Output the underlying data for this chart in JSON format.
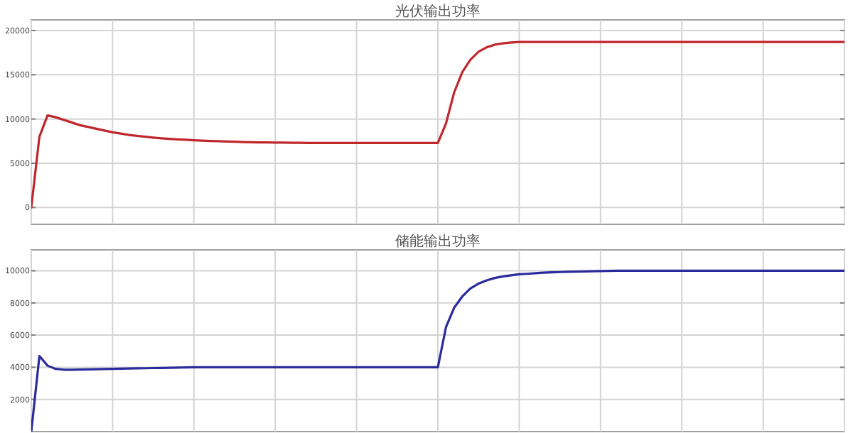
{
  "chart_data": [
    {
      "type": "line",
      "title": "光伏输出功率",
      "categories": [
        null,
        null,
        null,
        null,
        null,
        null,
        null,
        null,
        null,
        null,
        null,
        null,
        null,
        null,
        null,
        null,
        null,
        null,
        null,
        null,
        null,
        null,
        null,
        null,
        null,
        null,
        null,
        null,
        null,
        null,
        null,
        null,
        null,
        null,
        null,
        null,
        null,
        null,
        null,
        null,
        null,
        null,
        null,
        null,
        null,
        null,
        null,
        null,
        null,
        null,
        null,
        null,
        null,
        null,
        null,
        null,
        null,
        null,
        null,
        null,
        null,
        null,
        null,
        null,
        null,
        null,
        null,
        null,
        null,
        null,
        null,
        null,
        null,
        null,
        null,
        null,
        null,
        null,
        null,
        null,
        null,
        null,
        null,
        null,
        null,
        null,
        null,
        null,
        null,
        null,
        null,
        null,
        null,
        null,
        null,
        null,
        null,
        null,
        null,
        null,
        null
      ],
      "series": [
        {
          "color": "#c0272d",
          "values": [
            0,
            8000,
            10400,
            10200,
            9900,
            9600,
            9300,
            9100,
            8900,
            8700,
            8500,
            8350,
            8200,
            8100,
            8000,
            7900,
            7820,
            7750,
            7700,
            7650,
            7600,
            7560,
            7520,
            7490,
            7460,
            7430,
            7400,
            7380,
            7360,
            7350,
            7340,
            7330,
            7320,
            7310,
            7300,
            7300,
            7300,
            7300,
            7300,
            7300,
            7300,
            7300,
            7300,
            7300,
            7300,
            7300,
            7300,
            7300,
            7300,
            7300,
            7300,
            9500,
            13000,
            15300,
            16700,
            17600,
            18100,
            18400,
            18550,
            18650,
            18700,
            18700,
            18700,
            18700,
            18700,
            18700,
            18700,
            18700,
            18700,
            18700,
            18700,
            18700,
            18700,
            18700,
            18700,
            18700,
            18700,
            18700,
            18700,
            18700,
            18700,
            18700,
            18700,
            18700,
            18700,
            18700,
            18700,
            18700,
            18700,
            18700,
            18700,
            18700,
            18700,
            18700,
            18700,
            18700,
            18700,
            18700,
            18700,
            18700,
            18700
          ]
        }
      ],
      "ylim": [
        -1900,
        21200
      ],
      "yticks": [
        0,
        5000,
        10000,
        15000,
        20000
      ],
      "grid": true,
      "tick_labels": "y"
    },
    {
      "type": "line",
      "title": "储能输出功率",
      "categories": [
        null,
        null,
        null,
        null,
        null,
        null,
        null,
        null,
        null,
        null,
        null,
        null,
        null,
        null,
        null,
        null,
        null,
        null,
        null,
        null,
        null,
        null,
        null,
        null,
        null,
        null,
        null,
        null,
        null,
        null,
        null,
        null,
        null,
        null,
        null,
        null,
        null,
        null,
        null,
        null,
        null,
        null,
        null,
        null,
        null,
        null,
        null,
        null,
        null,
        null,
        null,
        null,
        null,
        null,
        null,
        null,
        null,
        null,
        null,
        null,
        null,
        null,
        null,
        null,
        null,
        null,
        null,
        null,
        null,
        null,
        null,
        null,
        null,
        null,
        null,
        null,
        null,
        null,
        null,
        null,
        null,
        null,
        null,
        null,
        null,
        null,
        null,
        null,
        null,
        null,
        null,
        null,
        null,
        null,
        null,
        null,
        null,
        null,
        null,
        null,
        null
      ],
      "series": [
        {
          "color": "#2b2b9b",
          "values": [
            0,
            4700,
            4100,
            3900,
            3850,
            3850,
            3860,
            3870,
            3880,
            3890,
            3900,
            3910,
            3920,
            3930,
            3940,
            3950,
            3960,
            3970,
            3980,
            3990,
            4000,
            4000,
            4000,
            4000,
            4000,
            4000,
            4000,
            4000,
            4000,
            4000,
            4000,
            4000,
            4000,
            4000,
            4000,
            4000,
            4000,
            4000,
            4000,
            4000,
            4000,
            4000,
            4000,
            4000,
            4000,
            4000,
            4000,
            4000,
            4000,
            4000,
            4000,
            6500,
            7700,
            8400,
            8900,
            9200,
            9400,
            9550,
            9650,
            9720,
            9780,
            9810,
            9850,
            9880,
            9900,
            9920,
            9940,
            9950,
            9960,
            9970,
            9980,
            9990,
            10000,
            10000,
            10000,
            10000,
            10000,
            10000,
            10000,
            10000,
            10000,
            10000,
            10000,
            10000,
            10000,
            10000,
            10000,
            10000,
            10000,
            10000,
            10000,
            10000,
            10000,
            10000,
            10000,
            10000,
            10000,
            10000,
            10000,
            10000,
            10000
          ]
        }
      ],
      "ylim": [
        0,
        11300
      ],
      "yticks": [
        2000,
        4000,
        6000,
        8000,
        10000
      ],
      "grid": true,
      "tick_labels": "y"
    }
  ]
}
